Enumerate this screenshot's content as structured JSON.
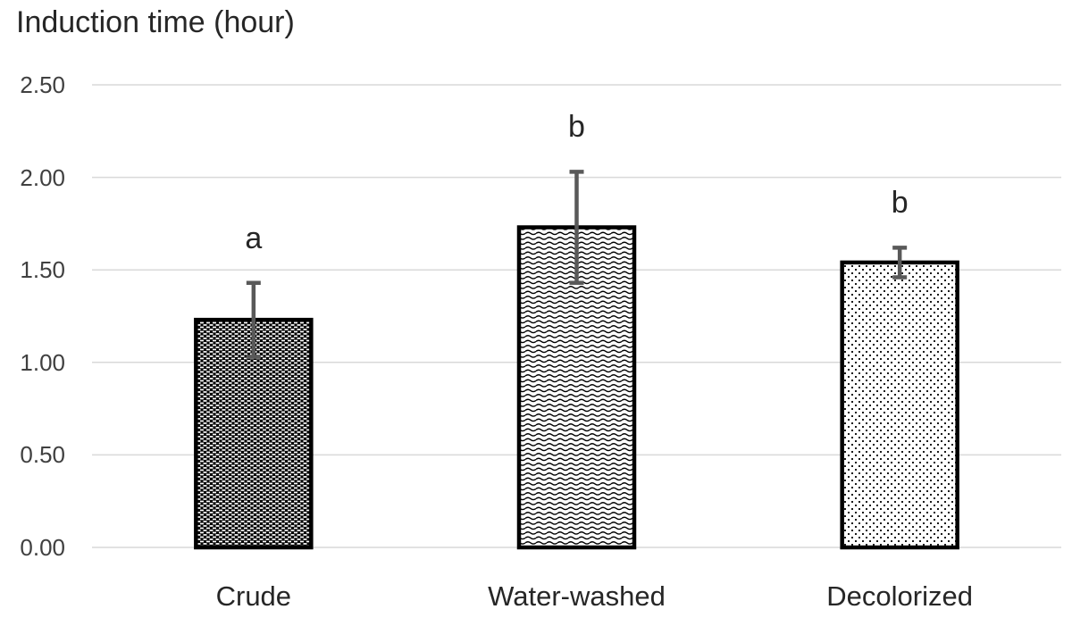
{
  "chart_data": {
    "type": "bar",
    "title": "Induction time (hour)",
    "xlabel": "",
    "ylabel": "Induction time (hour)",
    "categories": [
      "Crude",
      "Water-washed",
      "Decolorized"
    ],
    "values": [
      1.23,
      1.73,
      1.54
    ],
    "error_bars": [
      0.2,
      0.3,
      0.08
    ],
    "significance_letters": [
      "a",
      "b",
      "b"
    ],
    "bar_patterns": [
      "dense-white-dash-on-black",
      "wave-lines",
      "sparse-dots"
    ],
    "ylim": [
      0.0,
      2.5
    ],
    "ytick_step": 0.5,
    "ytick_labels": [
      "0.00",
      "0.50",
      "1.00",
      "1.50",
      "2.00",
      "2.50"
    ],
    "grid": true,
    "legend": "none",
    "colors": {
      "text": "#262626",
      "axis_text": "#404040",
      "gridline": "#d9d9d9",
      "bar_border": "#000000",
      "error_bar": "#595959",
      "background": "#ffffff"
    }
  }
}
